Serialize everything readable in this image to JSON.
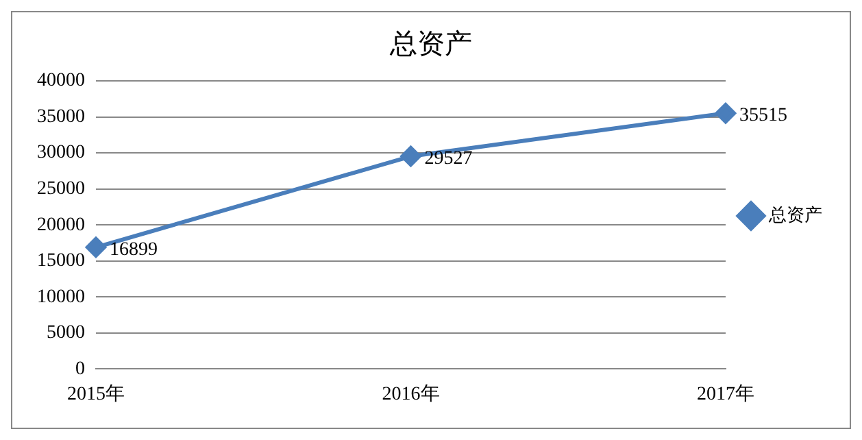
{
  "chart_data": {
    "type": "line",
    "title": "总资产",
    "categories": [
      "2015年",
      "2016年",
      "2017年"
    ],
    "series": [
      {
        "name": "总资产",
        "color": "#4a7ebb",
        "values": [
          16899,
          29527,
          35515
        ]
      }
    ],
    "ylim": [
      0,
      40000
    ],
    "yticks": [
      0,
      5000,
      10000,
      15000,
      20000,
      25000,
      30000,
      35000,
      40000
    ],
    "grid": "y",
    "legend": "right",
    "marker": "diamond",
    "line_style": "solid",
    "data_labels": true
  }
}
